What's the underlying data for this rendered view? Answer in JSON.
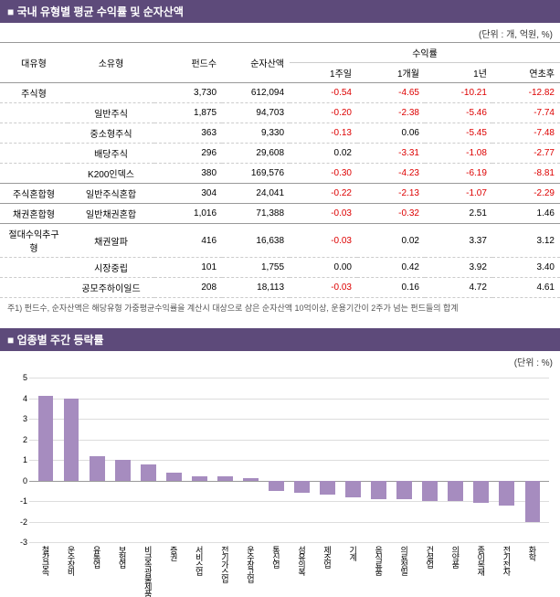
{
  "table_section": {
    "title": "국내 유형별 평균 수익률 및 순자산액",
    "unit": "(단위 : 개, 억원, %)",
    "headers": {
      "major": "대유형",
      "sub": "소유형",
      "fund_count": "펀드수",
      "nav": "순자산액",
      "returns_group": "수익률",
      "w1": "1주일",
      "m1": "1개월",
      "y1": "1년",
      "ytd": "연초후"
    },
    "rows": [
      {
        "major": "주식형",
        "sub": "",
        "fund": "3,730",
        "nav": "612,094",
        "w1": "-0.54",
        "m1": "-4.65",
        "y1": "-10.21",
        "ytd": "-12.82"
      },
      {
        "major": "",
        "sub": "일반주식",
        "fund": "1,875",
        "nav": "94,703",
        "w1": "-0.20",
        "m1": "-2.38",
        "y1": "-5.46",
        "ytd": "-7.74"
      },
      {
        "major": "",
        "sub": "중소형주식",
        "fund": "363",
        "nav": "9,330",
        "w1": "-0.13",
        "m1": "0.06",
        "y1": "-5.45",
        "ytd": "-7.48"
      },
      {
        "major": "",
        "sub": "배당주식",
        "fund": "296",
        "nav": "29,608",
        "w1": "0.02",
        "m1": "-3.31",
        "y1": "-1.08",
        "ytd": "-2.77"
      },
      {
        "major": "",
        "sub": "K200인덱스",
        "fund": "380",
        "nav": "169,576",
        "w1": "-0.30",
        "m1": "-4.23",
        "y1": "-6.19",
        "ytd": "-8.81"
      },
      {
        "major": "주식혼합형",
        "sub": "일반주식혼합",
        "fund": "304",
        "nav": "24,041",
        "w1": "-0.22",
        "m1": "-2.13",
        "y1": "-1.07",
        "ytd": "-2.29"
      },
      {
        "major": "채권혼합형",
        "sub": "일반채권혼합",
        "fund": "1,016",
        "nav": "71,388",
        "w1": "-0.03",
        "m1": "-0.32",
        "y1": "2.51",
        "ytd": "1.46"
      },
      {
        "major": "절대수익추구형",
        "sub": "채권알파",
        "fund": "416",
        "nav": "16,638",
        "w1": "-0.03",
        "m1": "0.02",
        "y1": "3.37",
        "ytd": "3.12"
      },
      {
        "major": "",
        "sub": "시장중립",
        "fund": "101",
        "nav": "1,755",
        "w1": "0.00",
        "m1": "0.42",
        "y1": "3.92",
        "ytd": "3.40"
      },
      {
        "major": "",
        "sub": "공모주하이일드",
        "fund": "208",
        "nav": "18,113",
        "w1": "-0.03",
        "m1": "0.16",
        "y1": "4.72",
        "ytd": "4.61"
      }
    ],
    "footnote": "주1) 펀드수, 순자산액은 해당유형 가중평균수익률을 계산시 대상으로 삼은 순자산액 10억이상, 운용기간이 2주가 넘는 펀드들의 합계"
  },
  "chart_section": {
    "title": "업종별 주간 등락률",
    "unit": "(단위 : %)",
    "type": "bar",
    "ylim": [
      -3,
      5
    ],
    "ytick_step": 1,
    "bar_color": "#a68cbf",
    "grid_color": "#dddddd",
    "zero_color": "#999999",
    "background": "#ffffff",
    "categories": [
      "철강금속",
      "운수장비",
      "유통업",
      "보험업",
      "비금속광물제품",
      "증권",
      "서비스업",
      "전기가스업",
      "운수창고업",
      "통신업",
      "섬유의복",
      "제조업",
      "기계",
      "음식료품",
      "의료정밀",
      "건설업",
      "의약품",
      "종이목재",
      "전기전자",
      "화학"
    ],
    "values": [
      4.1,
      4.0,
      1.2,
      1.0,
      0.8,
      0.4,
      0.2,
      0.2,
      0.1,
      -0.5,
      -0.6,
      -0.7,
      -0.8,
      -0.9,
      -0.9,
      -1.0,
      -1.0,
      -1.1,
      -1.2,
      -2.0
    ]
  }
}
